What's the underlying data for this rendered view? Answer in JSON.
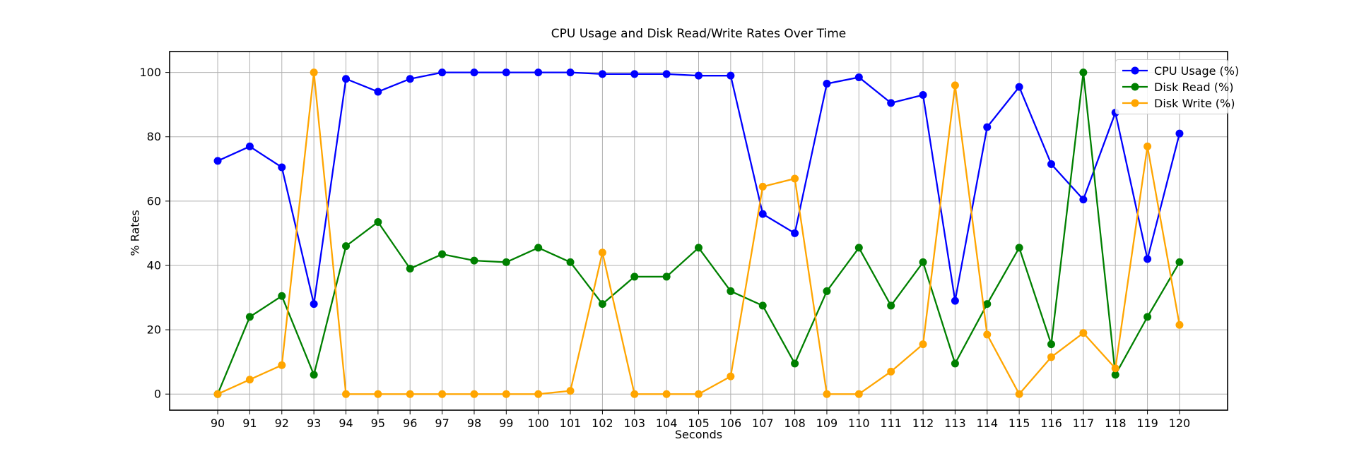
{
  "chart_data": {
    "type": "line",
    "title": "CPU Usage and Disk Read/Write Rates Over Time",
    "xlabel": "Seconds",
    "ylabel": "% Rates",
    "x": [
      90,
      91,
      92,
      93,
      94,
      95,
      96,
      97,
      98,
      99,
      100,
      101,
      102,
      103,
      104,
      105,
      106,
      107,
      108,
      109,
      110,
      111,
      112,
      113,
      114,
      115,
      116,
      117,
      118,
      119,
      120
    ],
    "series": [
      {
        "name": "CPU Usage (%)",
        "color": "#0000ff",
        "values": [
          72.5,
          77,
          70.5,
          28,
          98,
          94,
          98,
          100,
          100,
          100,
          100,
          100,
          99.5,
          99.5,
          99.5,
          99,
          99,
          56,
          50,
          96.5,
          98.5,
          90.5,
          93,
          29,
          83,
          95.5,
          71.5,
          60.5,
          87.5,
          42,
          81
        ]
      },
      {
        "name": "Disk Read (%)",
        "color": "#008000",
        "values": [
          0,
          24,
          30.5,
          6,
          46,
          53.5,
          39,
          43.5,
          41.5,
          41,
          45.5,
          41,
          28,
          36.5,
          36.5,
          45.5,
          32,
          27.5,
          9.5,
          32,
          45.5,
          27.5,
          41,
          9.5,
          28,
          45.5,
          15.5,
          100,
          6,
          24,
          41
        ]
      },
      {
        "name": "Disk Write (%)",
        "color": "#ffa500",
        "values": [
          0,
          4.5,
          9,
          100,
          0,
          0,
          0,
          0,
          0,
          0,
          0,
          1,
          44,
          0,
          0,
          0,
          5.5,
          64.5,
          67,
          0,
          0,
          7,
          15.5,
          96,
          18.5,
          0,
          11.5,
          19,
          8,
          77,
          21.5
        ]
      }
    ],
    "xticks": [
      90,
      91,
      92,
      93,
      94,
      95,
      96,
      97,
      98,
      99,
      100,
      101,
      102,
      103,
      104,
      105,
      106,
      107,
      108,
      109,
      110,
      111,
      112,
      113,
      114,
      115,
      116,
      117,
      118,
      119,
      120
    ],
    "yticks": [
      0,
      20,
      40,
      60,
      80,
      100
    ],
    "xlim": [
      88.5,
      121.5
    ],
    "ylim": [
      -5,
      106.5
    ],
    "grid": true,
    "grid_color": "#b0b0b0",
    "legend_position": "upper right"
  }
}
